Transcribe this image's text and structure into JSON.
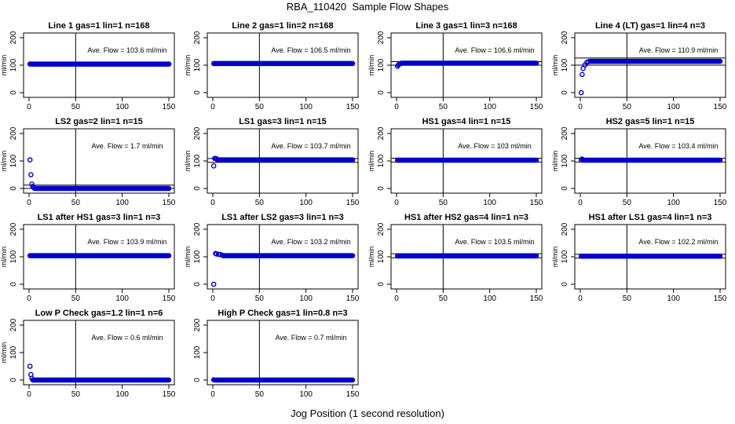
{
  "figure": {
    "title": "RBA_110420  Sample Flow Shapes",
    "xlabel": "Jog Position (1 second resolution)"
  },
  "chart_data": [
    {
      "type": "scatter",
      "title": "Line 1 gas=1 lin=1 n=168",
      "ylabel": "ml/min",
      "annotation": "Ave. Flow = 103.6  ml/min",
      "xlim": [
        0,
        150
      ],
      "ylim": [
        0,
        200
      ],
      "xticks": [
        0,
        50,
        100,
        150
      ],
      "yticks": [
        0,
        100,
        200
      ],
      "vline_x": 50,
      "hlines": [],
      "series_color": "#0000cc",
      "points": [
        {
          "x": 1,
          "y": 104
        },
        {
          "x": 2,
          "y": 104
        },
        {
          "x": 150,
          "y": 104
        }
      ],
      "run": {
        "x_from": 3,
        "x_to": 150,
        "y": 104
      }
    },
    {
      "type": "scatter",
      "title": "Line 2 gas=1 lin=2 n=168",
      "ylabel": "ml/min",
      "annotation": "Ave. Flow = 106.5  ml/min",
      "xlim": [
        0,
        150
      ],
      "ylim": [
        0,
        200
      ],
      "xticks": [
        0,
        50,
        100,
        150
      ],
      "yticks": [
        0,
        100,
        200
      ],
      "vline_x": 50,
      "hlines": [],
      "series_color": "#0000cc",
      "points": [
        {
          "x": 1,
          "y": 106
        },
        {
          "x": 2,
          "y": 106
        }
      ],
      "run": {
        "x_from": 3,
        "x_to": 150,
        "y": 106
      }
    },
    {
      "type": "scatter",
      "title": "Line 3 gas=1 lin=3 n=168",
      "ylabel": "ml/min",
      "annotation": "Ave. Flow = 106.6  ml/min",
      "xlim": [
        0,
        150
      ],
      "ylim": [
        0,
        200
      ],
      "xticks": [
        0,
        50,
        100,
        150
      ],
      "yticks": [
        0,
        100,
        200
      ],
      "vline_x": 50,
      "hlines": [
        {
          "y": 100
        },
        {
          "y": 113
        }
      ],
      "series_color": "#0000cc",
      "points": [
        {
          "x": 1,
          "y": 96
        },
        {
          "x": 2,
          "y": 101
        },
        {
          "x": 3,
          "y": 104
        },
        {
          "x": 4,
          "y": 105
        }
      ],
      "run": {
        "x_from": 5,
        "x_to": 150,
        "y": 107
      }
    },
    {
      "type": "scatter",
      "title": "Line 4 (LT) gas=1 lin=4 n=3",
      "ylabel": "ml/min",
      "annotation": "Ave. Flow = 110.9  ml/min",
      "xlim": [
        0,
        150
      ],
      "ylim": [
        0,
        200
      ],
      "xticks": [
        0,
        50,
        100,
        150
      ],
      "yticks": [
        0,
        100,
        200
      ],
      "vline_x": 50,
      "hlines": [
        {
          "y": 100
        },
        {
          "y": 126
        }
      ],
      "series_color": "#0000cc",
      "points": [
        {
          "x": 1,
          "y": 0
        },
        {
          "x": 2,
          "y": 66
        },
        {
          "x": 3,
          "y": 88
        },
        {
          "x": 5,
          "y": 101
        },
        {
          "x": 7,
          "y": 110
        },
        {
          "x": 9,
          "y": 113
        },
        {
          "x": 11,
          "y": 114
        }
      ],
      "run": {
        "x_from": 12,
        "x_to": 150,
        "y": 114
      }
    },
    {
      "type": "scatter",
      "title": "LS2 gas=2 lin=1 n=15",
      "ylabel": "ml/min",
      "annotation": "Ave. Flow = 1.7  ml/min",
      "xlim": [
        0,
        150
      ],
      "ylim": [
        0,
        200
      ],
      "xticks": [
        0,
        50,
        100,
        150
      ],
      "yticks": [
        0,
        100,
        200
      ],
      "vline_x": 50,
      "hlines": [
        {
          "y": 0
        },
        {
          "y": 12
        }
      ],
      "series_color": "#0000cc",
      "points": [
        {
          "x": 1,
          "y": 104
        },
        {
          "x": 2,
          "y": 50
        },
        {
          "x": 3,
          "y": 16
        },
        {
          "x": 4,
          "y": 7
        },
        {
          "x": 5,
          "y": 3
        }
      ],
      "run": {
        "x_from": 6,
        "x_to": 150,
        "y": 0
      }
    },
    {
      "type": "scatter",
      "title": "LS1 gas=3 lin=1 n=15",
      "ylabel": "ml/min",
      "annotation": "Ave. Flow = 103.7  ml/min",
      "xlim": [
        0,
        150
      ],
      "ylim": [
        0,
        200
      ],
      "xticks": [
        0,
        50,
        100,
        150
      ],
      "yticks": [
        0,
        100,
        200
      ],
      "vline_x": 50,
      "hlines": [
        {
          "y": 95
        },
        {
          "y": 109
        }
      ],
      "series_color": "#0000cc",
      "points": [
        {
          "x": 1,
          "y": 82
        },
        {
          "x": 2,
          "y": 109
        },
        {
          "x": 3,
          "y": 109
        },
        {
          "x": 4,
          "y": 108
        }
      ],
      "run": {
        "x_from": 5,
        "x_to": 150,
        "y": 104
      }
    },
    {
      "type": "scatter",
      "title": "HS1 gas=4 lin=1 n=15",
      "ylabel": "ml/min",
      "annotation": "Ave. Flow = 103  ml/min",
      "xlim": [
        0,
        150
      ],
      "ylim": [
        0,
        200
      ],
      "xticks": [
        0,
        50,
        100,
        150
      ],
      "yticks": [
        0,
        100,
        200
      ],
      "vline_x": 50,
      "hlines": [
        {
          "y": 96
        },
        {
          "y": 110
        }
      ],
      "series_color": "#0000cc",
      "points": [
        {
          "x": 1,
          "y": 103
        },
        {
          "x": 2,
          "y": 103
        }
      ],
      "run": {
        "x_from": 3,
        "x_to": 150,
        "y": 103
      }
    },
    {
      "type": "scatter",
      "title": "HS2 gas=5 lin=1 n=15",
      "ylabel": "ml/min",
      "annotation": "Ave. Flow = 103.4  ml/min",
      "xlim": [
        0,
        150
      ],
      "ylim": [
        0,
        200
      ],
      "xticks": [
        0,
        50,
        100,
        150
      ],
      "yticks": [
        0,
        100,
        200
      ],
      "vline_x": 50,
      "hlines": [
        {
          "y": 96
        },
        {
          "y": 110
        }
      ],
      "series_color": "#0000cc",
      "points": [
        {
          "x": 1,
          "y": 104
        },
        {
          "x": 2,
          "y": 107
        }
      ],
      "run": {
        "x_from": 3,
        "x_to": 150,
        "y": 103
      }
    },
    {
      "type": "scatter",
      "title": "LS1 after HS1 gas=3 lin=1 n=3",
      "ylabel": "ml/min",
      "annotation": "Ave. Flow = 103.9  ml/min",
      "xlim": [
        0,
        150
      ],
      "ylim": [
        0,
        200
      ],
      "xticks": [
        0,
        50,
        100,
        150
      ],
      "yticks": [
        0,
        100,
        200
      ],
      "vline_x": 50,
      "hlines": [],
      "series_color": "#0000cc",
      "points": [
        {
          "x": 1,
          "y": 104
        }
      ],
      "run": {
        "x_from": 2,
        "x_to": 150,
        "y": 104
      }
    },
    {
      "type": "scatter",
      "title": "LS1 after LS2 gas=3 lin=1 n=3",
      "ylabel": "ml/min",
      "annotation": "Ave. Flow = 103.2  ml/min",
      "xlim": [
        0,
        150
      ],
      "ylim": [
        0,
        200
      ],
      "xticks": [
        0,
        50,
        100,
        150
      ],
      "yticks": [
        0,
        100,
        200
      ],
      "vline_x": 50,
      "hlines": [],
      "series_color": "#0000cc",
      "points": [
        {
          "x": 1,
          "y": 0
        },
        {
          "x": 3,
          "y": 112
        },
        {
          "x": 4,
          "y": 110
        },
        {
          "x": 6,
          "y": 109
        },
        {
          "x": 8,
          "y": 108
        },
        {
          "x": 10,
          "y": 106
        }
      ],
      "run": {
        "x_from": 11,
        "x_to": 150,
        "y": 104
      }
    },
    {
      "type": "scatter",
      "title": "HS1 after HS2 gas=4 lin=1 n=3",
      "ylabel": "ml/min",
      "annotation": "Ave. Flow = 103.5  ml/min",
      "xlim": [
        0,
        150
      ],
      "ylim": [
        0,
        200
      ],
      "xticks": [
        0,
        50,
        100,
        150
      ],
      "yticks": [
        0,
        100,
        200
      ],
      "vline_x": 50,
      "hlines": [
        {
          "y": 96
        },
        {
          "y": 111
        }
      ],
      "series_color": "#0000cc",
      "points": [
        {
          "x": 1,
          "y": 103
        }
      ],
      "run": {
        "x_from": 2,
        "x_to": 150,
        "y": 103
      }
    },
    {
      "type": "scatter",
      "title": "HS1 after LS1 gas=4 lin=1 n=3",
      "ylabel": "ml/min",
      "annotation": "Ave. Flow = 102.2  ml/min",
      "xlim": [
        0,
        150
      ],
      "ylim": [
        0,
        200
      ],
      "xticks": [
        0,
        50,
        100,
        150
      ],
      "yticks": [
        0,
        100,
        200
      ],
      "vline_x": 50,
      "hlines": [
        {
          "y": 95
        },
        {
          "y": 109
        }
      ],
      "series_color": "#0000cc",
      "points": [
        {
          "x": 1,
          "y": 102
        }
      ],
      "run": {
        "x_from": 2,
        "x_to": 150,
        "y": 102
      }
    },
    {
      "type": "scatter",
      "title": "Low P Check gas=1.2 lin=1 n=6",
      "ylabel": "ml/min",
      "annotation": "Ave. Flow = 0.6  ml/min",
      "xlim": [
        0,
        150
      ],
      "ylim": [
        0,
        200
      ],
      "xticks": [
        0,
        50,
        100,
        150
      ],
      "yticks": [
        0,
        100,
        200
      ],
      "vline_x": 50,
      "hlines": [],
      "series_color": "#0000cc",
      "points": [
        {
          "x": 1,
          "y": 50
        },
        {
          "x": 2,
          "y": 20
        },
        {
          "x": 3,
          "y": 6
        }
      ],
      "run": {
        "x_from": 4,
        "x_to": 150,
        "y": 0
      }
    },
    {
      "type": "scatter",
      "title": "High P Check gas=1 lin=0.8 n=3",
      "ylabel": "",
      "annotation": "Ave. Flow = 0.7  ml/min",
      "xlim": [
        0,
        150
      ],
      "ylim": [
        0,
        200
      ],
      "xticks": [
        0,
        50,
        100,
        150
      ],
      "yticks": [
        0,
        100,
        200
      ],
      "vline_x": 50,
      "hlines": [],
      "series_color": "#0000cc",
      "points": [
        {
          "x": 1,
          "y": 1
        }
      ],
      "run": {
        "x_from": 2,
        "x_to": 150,
        "y": 0
      }
    }
  ]
}
